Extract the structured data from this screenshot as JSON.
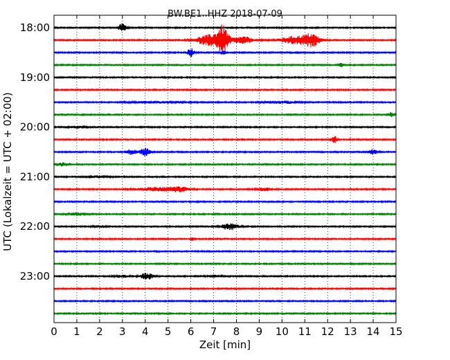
{
  "chart_data": {
    "type": "line",
    "title": "BW.BE1..HHZ 2018-07-09",
    "xlabel": "Zeit  [min]",
    "ylabel": "UTC (Lokalzeit = UTC + 02:00)",
    "xlim": [
      0,
      15
    ],
    "x_ticks": [
      0,
      1,
      2,
      3,
      4,
      5,
      6,
      7,
      8,
      9,
      10,
      11,
      12,
      13,
      14,
      15
    ],
    "x_tick_labels": [
      "0",
      "1",
      "2",
      "3",
      "4",
      "5",
      "6",
      "7",
      "8",
      "9",
      "10",
      "11",
      "12",
      "13",
      "14",
      "15"
    ],
    "y_tick_labels": [
      "18:00",
      "19:00",
      "20:00",
      "21:00",
      "22:00",
      "23:00"
    ],
    "grid": "vertical dotted",
    "trace_colors": [
      "#000000",
      "#ff0000",
      "#0000ff",
      "#008000"
    ],
    "traces": [
      {
        "start": "18:00",
        "events": [
          {
            "t": 3.0,
            "amp": 0.7,
            "width": 0.25
          }
        ]
      },
      {
        "start": "18:15",
        "events": [
          {
            "t": 6.9,
            "amp": 1.0,
            "width": 0.9
          },
          {
            "t": 7.4,
            "amp": 2.2,
            "width": 0.35
          },
          {
            "t": 8.3,
            "amp": 0.6,
            "width": 0.6
          },
          {
            "t": 10.6,
            "amp": 0.7,
            "width": 0.9
          },
          {
            "t": 11.3,
            "amp": 1.0,
            "width": 0.5
          }
        ]
      },
      {
        "start": "18:30",
        "events": [
          {
            "t": 6.0,
            "amp": 0.8,
            "width": 0.2
          },
          {
            "t": 7.4,
            "amp": 0.35,
            "width": 0.2
          }
        ]
      },
      {
        "start": "18:45",
        "events": [
          {
            "t": 12.6,
            "amp": 0.3,
            "width": 0.15
          }
        ]
      },
      {
        "start": "19:00",
        "events": []
      },
      {
        "start": "19:15",
        "events": []
      },
      {
        "start": "19:30",
        "events": [
          {
            "t": 4.5,
            "amp": 0.15,
            "width": 1.5
          },
          {
            "t": 10.0,
            "amp": 0.2,
            "width": 1.0
          }
        ]
      },
      {
        "start": "19:45",
        "events": [
          {
            "t": 14.8,
            "amp": 0.45,
            "width": 0.15
          }
        ]
      },
      {
        "start": "20:00",
        "events": [
          {
            "t": 1.0,
            "amp": 0.15,
            "width": 0.5
          }
        ]
      },
      {
        "start": "20:15",
        "events": [
          {
            "t": 12.3,
            "amp": 0.6,
            "width": 0.15
          }
        ]
      },
      {
        "start": "20:30",
        "events": [
          {
            "t": 3.4,
            "amp": 0.5,
            "width": 0.3
          },
          {
            "t": 4.0,
            "amp": 0.7,
            "width": 0.3
          },
          {
            "t": 14.0,
            "amp": 0.45,
            "width": 0.25
          }
        ]
      },
      {
        "start": "20:45",
        "events": [
          {
            "t": 0.4,
            "amp": 0.3,
            "width": 0.3
          }
        ]
      },
      {
        "start": "21:00",
        "events": [
          {
            "t": 2.0,
            "amp": 0.15,
            "width": 0.6
          }
        ]
      },
      {
        "start": "21:15",
        "events": [
          {
            "t": 4.5,
            "amp": 0.3,
            "width": 1.2
          },
          {
            "t": 5.5,
            "amp": 0.4,
            "width": 0.6
          },
          {
            "t": 9.2,
            "amp": 0.3,
            "width": 0.4
          }
        ]
      },
      {
        "start": "21:30",
        "events": []
      },
      {
        "start": "21:45",
        "events": [
          {
            "t": 1.0,
            "amp": 0.25,
            "width": 0.5
          }
        ]
      },
      {
        "start": "22:00",
        "events": [
          {
            "t": 7.7,
            "amp": 0.6,
            "width": 0.5
          },
          {
            "t": 2.0,
            "amp": 0.15,
            "width": 0.4
          }
        ]
      },
      {
        "start": "22:15",
        "events": [
          {
            "t": 6.05,
            "amp": 0.55,
            "width": 0.08
          }
        ]
      },
      {
        "start": "22:30",
        "events": []
      },
      {
        "start": "22:45",
        "events": []
      },
      {
        "start": "23:00",
        "events": [
          {
            "t": 4.1,
            "amp": 0.6,
            "width": 0.4
          },
          {
            "t": 7.0,
            "amp": 0.2,
            "width": 0.4
          },
          {
            "t": 3.0,
            "amp": 0.2,
            "width": 0.4
          }
        ]
      },
      {
        "start": "23:15",
        "events": []
      },
      {
        "start": "23:30",
        "events": []
      },
      {
        "start": "23:45",
        "events": []
      }
    ]
  }
}
